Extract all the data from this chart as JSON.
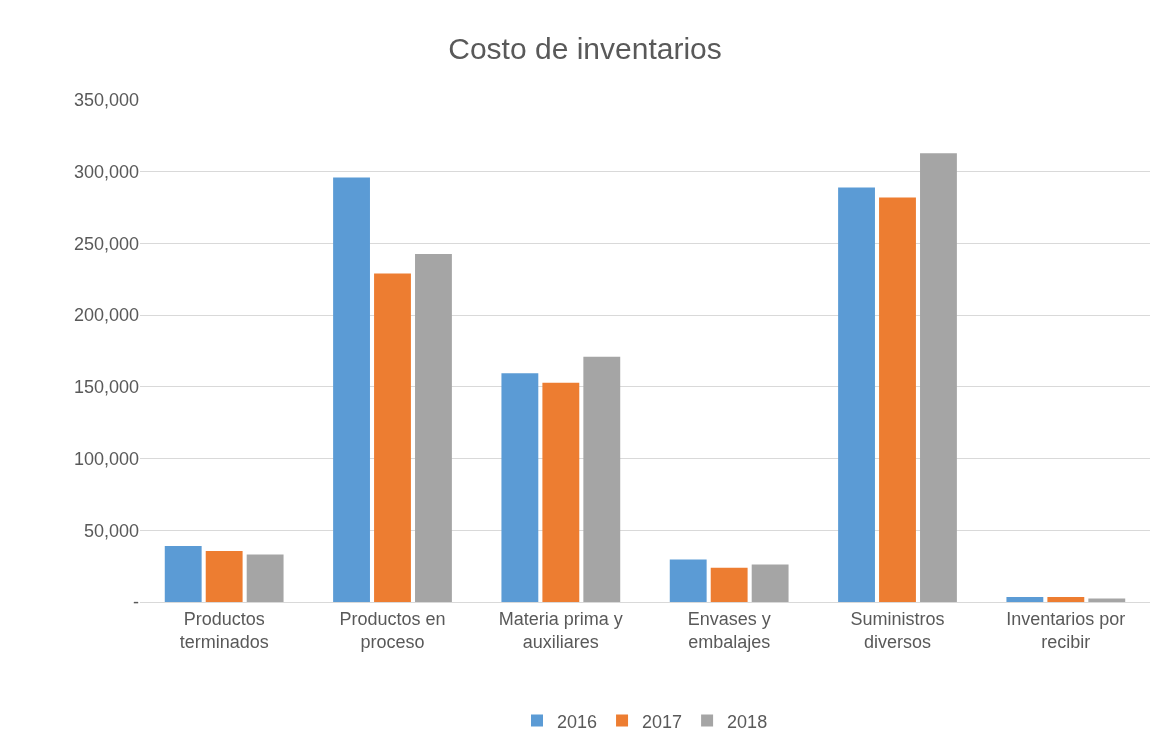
{
  "chart_data": {
    "type": "bar",
    "title": "Costo de inventarios",
    "categories": [
      "Productos terminados",
      "Productos en proceso",
      "Materia prima y auxiliares",
      "Envases y embalajes",
      "Suministros diversos",
      "Inventarios por recibir"
    ],
    "series": [
      {
        "name": "2016",
        "color": "#5b9bd5",
        "values": [
          39000,
          296000,
          159500,
          29700,
          289000,
          3500
        ]
      },
      {
        "name": "2017",
        "color": "#ed7d31",
        "values": [
          35500,
          229000,
          152800,
          23900,
          282000,
          3500
        ]
      },
      {
        "name": "2018",
        "color": "#a5a5a5",
        "values": [
          33200,
          242600,
          171000,
          26200,
          312800,
          2500
        ]
      }
    ],
    "ylim": [
      0,
      350000
    ],
    "yticks": [
      {
        "value": 0,
        "label": "-"
      },
      {
        "value": 50000,
        "label": "50,000"
      },
      {
        "value": 100000,
        "label": "100,000"
      },
      {
        "value": 150000,
        "label": "150,000"
      },
      {
        "value": 200000,
        "label": "200,000"
      },
      {
        "value": 250000,
        "label": "250,000"
      },
      {
        "value": 300000,
        "label": "300,000"
      },
      {
        "value": 350000,
        "label": "350,000"
      }
    ],
    "grid": "y",
    "legend": "bottom"
  }
}
